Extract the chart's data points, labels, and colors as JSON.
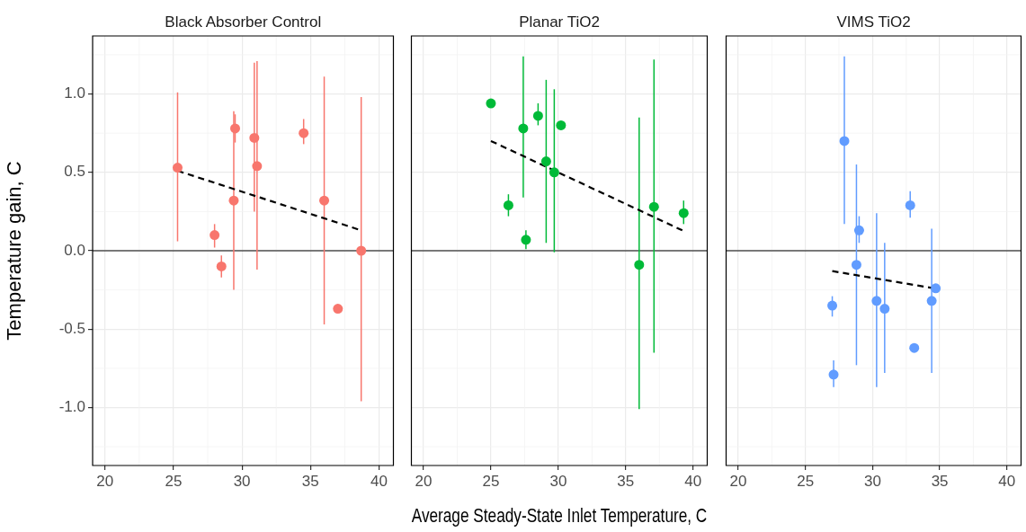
{
  "chart_data": [
    {
      "type": "scatter",
      "title": "Black Absorber Control",
      "ylabel": "Temperature gain, C",
      "xlim": [
        19.1,
        41.05
      ],
      "ylim": [
        -1.37,
        1.37
      ],
      "xticks": [
        20,
        25,
        30,
        35,
        40
      ],
      "yticks": [
        {
          "value": -1,
          "label": "-1.0"
        },
        {
          "value": -0.5,
          "label": "-0.5"
        },
        {
          "value": 0,
          "label": "0.0"
        },
        {
          "value": 0.5,
          "label": "0.5"
        },
        {
          "value": 1,
          "label": "1.0"
        }
      ],
      "grid": true,
      "marker": "circle",
      "ref_lines": [
        {
          "axis": "y",
          "value": 0,
          "color": "#000000"
        }
      ],
      "series": [
        {
          "color": "#f8766d",
          "x": [
            25.3,
            28.0,
            28.5,
            29.4,
            29.5,
            30.9,
            31.1,
            34.5,
            36.0,
            37.0,
            38.7
          ],
          "values": [
            0.53,
            0.1,
            -0.1,
            0.32,
            0.78,
            0.72,
            0.54,
            0.75,
            0.32,
            -0.37,
            0.0
          ],
          "errors": [
            [
              0.06,
              1.01
            ],
            [
              0.02,
              0.17
            ],
            [
              -0.17,
              -0.03
            ],
            [
              -0.25,
              0.89
            ],
            [
              0.69,
              0.87
            ],
            [
              0.25,
              1.2
            ],
            [
              -0.12,
              1.21
            ],
            [
              0.68,
              0.84
            ],
            [
              -0.47,
              1.11
            ],
            null,
            [
              -0.96,
              0.98
            ]
          ]
        },
        {
          "type": "line",
          "color": "#000000",
          "line_style": "dashed",
          "marker": "none",
          "x": [
            25.3,
            38.7
          ],
          "values": [
            0.51,
            0.13
          ]
        }
      ]
    },
    {
      "type": "scatter",
      "title": "Planar TiO2",
      "xlabel": "Average Steady-State Inlet Temperature, C",
      "xlim": [
        19.1,
        41.05
      ],
      "ylim": [
        -1.37,
        1.37
      ],
      "xticks": [
        20,
        25,
        30,
        35,
        40
      ],
      "yticks": [
        -1,
        -0.5,
        0,
        0.5,
        1
      ],
      "tick_labels": "x",
      "grid": true,
      "marker": "circle",
      "ref_lines": [
        {
          "axis": "y",
          "value": 0,
          "color": "#000000"
        }
      ],
      "series": [
        {
          "color": "#00ba38",
          "x": [
            25.0,
            26.3,
            27.4,
            27.6,
            28.5,
            29.1,
            29.7,
            30.2,
            36.0,
            37.1,
            39.3
          ],
          "values": [
            0.94,
            0.29,
            0.78,
            0.07,
            0.86,
            0.57,
            0.5,
            0.8,
            -0.09,
            0.28,
            0.24
          ],
          "errors": [
            null,
            [
              0.22,
              0.36
            ],
            [
              0.34,
              1.24
            ],
            [
              0.01,
              0.13
            ],
            [
              0.8,
              0.94
            ],
            [
              0.05,
              1.09
            ],
            [
              -0.01,
              1.03
            ],
            null,
            [
              -1.01,
              0.85
            ],
            [
              -0.65,
              1.22
            ],
            [
              0.17,
              0.32
            ]
          ]
        },
        {
          "type": "line",
          "color": "#000000",
          "line_style": "dashed",
          "marker": "none",
          "x": [
            25.0,
            39.2
          ],
          "values": [
            0.7,
            0.13
          ]
        }
      ]
    },
    {
      "type": "scatter",
      "title": "VIMS TiO2",
      "xlim": [
        19.1,
        41.05
      ],
      "ylim": [
        -1.37,
        1.37
      ],
      "xticks": [
        20,
        25,
        30,
        35,
        40
      ],
      "yticks": [
        -1,
        -0.5,
        0,
        0.5,
        1
      ],
      "tick_labels": "x",
      "grid": true,
      "marker": "circle",
      "ref_lines": [
        {
          "axis": "y",
          "value": 0,
          "color": "#000000"
        }
      ],
      "series": [
        {
          "color": "#619cff",
          "x": [
            27.9,
            29.0,
            28.8,
            27.0,
            27.1,
            30.3,
            30.9,
            32.8,
            33.1,
            34.4,
            34.7
          ],
          "values": [
            0.7,
            0.13,
            -0.09,
            -0.35,
            -0.79,
            -0.32,
            -0.37,
            0.29,
            -0.62,
            -0.32,
            -0.24
          ],
          "errors": [
            [
              0.17,
              1.24
            ],
            [
              0.05,
              0.22
            ],
            [
              -0.73,
              0.55
            ],
            [
              -0.42,
              -0.29
            ],
            [
              -0.87,
              -0.7
            ],
            [
              -0.87,
              0.24
            ],
            [
              -0.78,
              0.05
            ],
            [
              0.21,
              0.38
            ],
            null,
            [
              -0.78,
              0.14
            ],
            null
          ]
        },
        {
          "type": "line",
          "color": "#000000",
          "line_style": "dashed",
          "marker": "none",
          "x": [
            27.0,
            34.6
          ],
          "values": [
            -0.13,
            -0.24
          ]
        }
      ]
    }
  ]
}
